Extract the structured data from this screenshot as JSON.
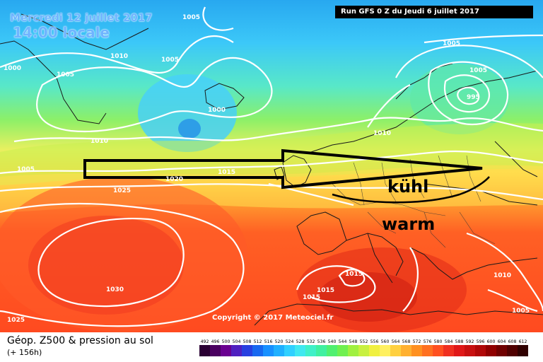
{
  "header": {
    "date": "Mercredi 12 juillet 2017",
    "time": "14:00 locale",
    "run_info": "Run GFS 0 Z du Jeudi 6 juillet 2017"
  },
  "annotations": {
    "cool": "kühl",
    "warm": "warm"
  },
  "isobars": [
    {
      "value": "1005"
    },
    {
      "value": "1000"
    },
    {
      "value": "1010"
    },
    {
      "value": "1005"
    },
    {
      "value": "1005"
    },
    {
      "value": "1000"
    },
    {
      "value": "1010"
    },
    {
      "value": "1005"
    },
    {
      "value": "1015"
    },
    {
      "value": "1020"
    },
    {
      "value": "1025"
    },
    {
      "value": "1030"
    },
    {
      "value": "1025"
    },
    {
      "value": "1015"
    },
    {
      "value": "1015"
    },
    {
      "value": "1015"
    },
    {
      "value": "1010"
    },
    {
      "value": "1005"
    },
    {
      "value": "1005"
    },
    {
      "value": "995"
    },
    {
      "value": "1010"
    },
    {
      "value": "1005"
    }
  ],
  "copyright": "Copyright © 2017 Meteociel.fr",
  "legend": {
    "title": "Géop. Z500 & pression au sol",
    "subtitle": "(+ 156h)",
    "ticks": [
      "492",
      "496",
      "500",
      "504",
      "508",
      "512",
      "516",
      "520",
      "524",
      "528",
      "532",
      "536",
      "540",
      "544",
      "548",
      "552",
      "556",
      "560",
      "564",
      "568",
      "572",
      "576",
      "580",
      "584",
      "588",
      "592",
      "596",
      "600",
      "604",
      "608",
      "612"
    ],
    "colors": [
      "#2a0033",
      "#4a0060",
      "#6a0090",
      "#5020c0",
      "#2840e0",
      "#1868f0",
      "#1890ff",
      "#20b0ff",
      "#30d0ff",
      "#40e8f0",
      "#40f0c8",
      "#40f0a0",
      "#50f070",
      "#70f050",
      "#a0f040",
      "#c8f040",
      "#f0f040",
      "#fff060",
      "#ffd040",
      "#ffb030",
      "#ff9020",
      "#ff7020",
      "#ff5020",
      "#f03020",
      "#e01818",
      "#c81010",
      "#b00808",
      "#900000",
      "#700000",
      "#500000",
      "#300000"
    ]
  }
}
